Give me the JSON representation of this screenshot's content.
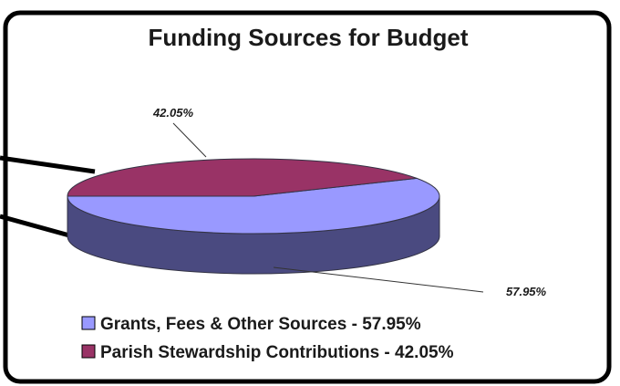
{
  "chart_data": {
    "type": "pie",
    "title": "Funding Sources for Budget",
    "slices": [
      {
        "label": "Grants, Fees & Other Sources",
        "value": 57.95,
        "data_label": "57.95%",
        "legend": "Grants, Fees & Other Sources - 57.95%",
        "color": "#9999ff",
        "side_color": "#4a4a80"
      },
      {
        "label": "Parish Stewardship Contributions",
        "value": 42.05,
        "data_label": "42.05%",
        "legend": "Parish Stewardship Contributions - 42.05%",
        "color": "#993366",
        "side_color": "#4a1a33"
      }
    ],
    "style": "3d",
    "legend_position": "bottom",
    "grid": false
  }
}
